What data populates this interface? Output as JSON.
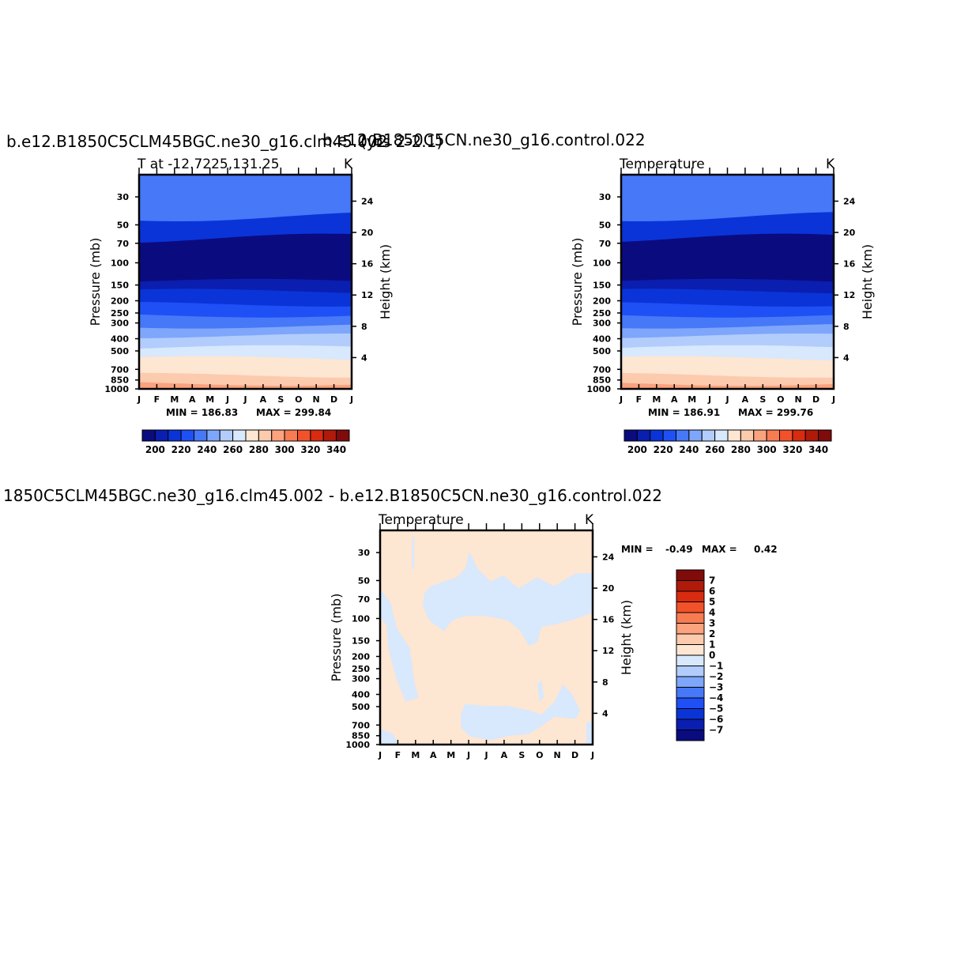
{
  "page": {
    "left_run_title": "b.e12.B1850C5CLM45BGC.ne30_g16.clm45.002",
    "left_yrs": "(yrs 2-2.1)",
    "right_run_title": "b.e12.B1850C5CN.ne30_g16.control.022",
    "diff_title": "1850C5CLM45BGC.ne30_g16.clm45.002  -  b.e12.B1850C5CN.ne30_g16.control.022"
  },
  "chart_data": [
    {
      "id": "left",
      "type": "heatmap",
      "subtitle_left": "T at  -12.7225,131.25",
      "units": "K",
      "ylabel_left": "Pressure  (mb)",
      "ylabel_right": "Height  (km)",
      "x_ticks": [
        "J",
        "F",
        "M",
        "A",
        "M",
        "J",
        "J",
        "A",
        "S",
        "O",
        "N",
        "D",
        "J"
      ],
      "pressure_ticks": [
        30,
        50,
        70,
        100,
        150,
        200,
        250,
        300,
        400,
        500,
        700,
        850,
        1000
      ],
      "height_ticks": [
        24,
        20,
        16,
        12,
        8,
        4
      ],
      "ylim": [
        1000,
        20
      ],
      "min_label": "MIN = 186.83",
      "max_label": "MAX = 299.84",
      "min": 186.83,
      "max": 299.84,
      "colorbar": {
        "labels": [
          "200",
          "220",
          "240",
          "260",
          "280",
          "300",
          "320",
          "340"
        ],
        "colors": [
          "#0b0b80",
          "#0a1eb0",
          "#0a34d8",
          "#1e50f5",
          "#4678f8",
          "#7ea6fa",
          "#b2ccfc",
          "#d8e8fd",
          "#fde6d2",
          "#fccaad",
          "#fba27e",
          "#f87c52",
          "#f2522a",
          "#d82b10",
          "#b01a0a",
          "#800b0b"
        ]
      },
      "levels_by_pressure": [
        {
          "p": 20,
          "band": 4
        },
        {
          "p": 43,
          "band": 2
        },
        {
          "p": 64,
          "band": 0
        },
        {
          "p": 140,
          "band": 1
        },
        {
          "p": 168,
          "band": 2
        },
        {
          "p": 213,
          "band": 3
        },
        {
          "p": 260,
          "band": 4
        },
        {
          "p": 318,
          "band": 5
        },
        {
          "p": 380,
          "band": 6
        },
        {
          "p": 470,
          "band": 7
        },
        {
          "p": 575,
          "band": 8
        },
        {
          "p": 780,
          "band": 9
        },
        {
          "p": 905,
          "band": 10
        }
      ]
    },
    {
      "id": "right",
      "type": "heatmap",
      "subtitle_left": "Temperature",
      "units": "K",
      "ylabel_left": "Pressure  (mb)",
      "ylabel_right": "Height  (km)",
      "x_ticks": [
        "J",
        "F",
        "M",
        "A",
        "M",
        "J",
        "J",
        "A",
        "S",
        "O",
        "N",
        "D",
        "J"
      ],
      "pressure_ticks": [
        30,
        50,
        70,
        100,
        150,
        200,
        250,
        300,
        400,
        500,
        700,
        850,
        1000
      ],
      "height_ticks": [
        24,
        20,
        16,
        12,
        8,
        4
      ],
      "ylim": [
        1000,
        20
      ],
      "min_label": "MIN = 186.91",
      "max_label": "MAX = 299.76",
      "min": 186.91,
      "max": 299.76,
      "colorbar": {
        "labels": [
          "200",
          "220",
          "240",
          "260",
          "280",
          "300",
          "320",
          "340"
        ]
      }
    },
    {
      "id": "diff",
      "type": "heatmap",
      "subtitle_left": "Temperature",
      "units": "K",
      "ylabel_left": "Pressure  (mb)",
      "ylabel_right": "Height  (km)",
      "x_ticks": [
        "J",
        "F",
        "M",
        "A",
        "M",
        "J",
        "J",
        "A",
        "S",
        "O",
        "N",
        "D",
        "J"
      ],
      "pressure_ticks": [
        30,
        50,
        70,
        100,
        150,
        200,
        250,
        300,
        400,
        500,
        700,
        850,
        1000
      ],
      "height_ticks": [
        24,
        20,
        16,
        12,
        8,
        4
      ],
      "ylim": [
        1000,
        20
      ],
      "min_label": "MIN =",
      "min_value": "-0.49",
      "max_label": "MAX =",
      "max_value": "0.42",
      "min": -0.49,
      "max": 0.42,
      "colorbar": {
        "labels": [
          "7",
          "6",
          "5",
          "4",
          "3",
          "2",
          "1",
          "0",
          "-1",
          "-2",
          "-3",
          "-4",
          "-5",
          "-6",
          "-7"
        ],
        "colors": [
          "#800b0b",
          "#b01a0a",
          "#d82b10",
          "#f2522a",
          "#f87c52",
          "#fba27e",
          "#fccaad",
          "#fde6d2",
          "#d8e8fd",
          "#b2ccfc",
          "#7ea6fa",
          "#4678f8",
          "#1e50f5",
          "#0a34d8",
          "#0a1eb0",
          "#0b0b80"
        ]
      }
    }
  ]
}
